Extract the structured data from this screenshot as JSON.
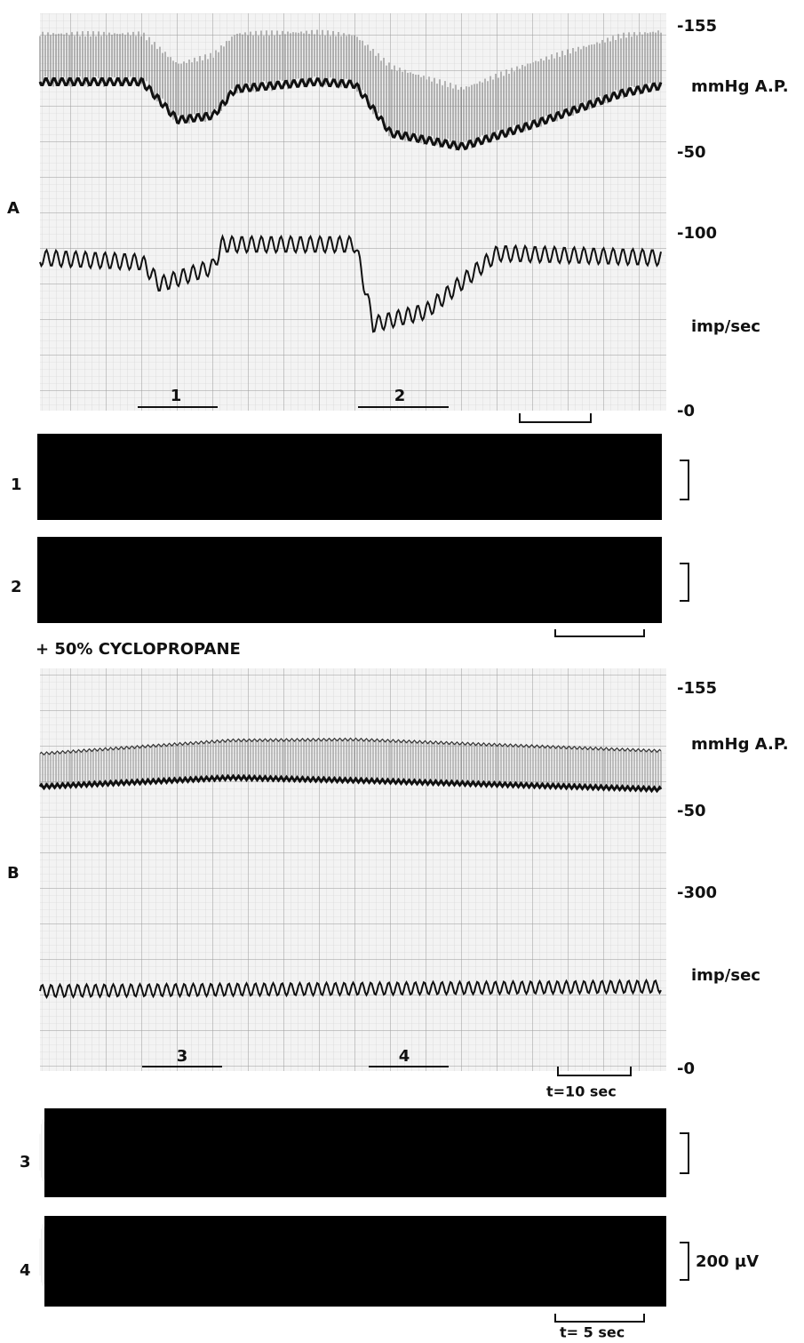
{
  "panel_a": {
    "label": "A",
    "scale_labels": [
      "-155",
      "mmHg A.P.",
      "-50",
      "-100",
      "imp/sec",
      "-0"
    ],
    "period_labels": [
      "1",
      "2"
    ]
  },
  "recordings_a": [
    "1",
    "2"
  ],
  "annotation": "+ 50% CYCLOPROPANE",
  "panel_b": {
    "label": "B",
    "scale_labels": [
      "-155",
      "mmHg A.P.",
      "-50",
      "-300",
      "imp/sec",
      "-0"
    ],
    "period_labels": [
      "3",
      "4"
    ],
    "time_scale": "t=10 sec"
  },
  "recordings_b": [
    "3",
    "4"
  ],
  "amplitude_scale": "200 µV",
  "recording_time_scale": "t= 5 sec"
}
